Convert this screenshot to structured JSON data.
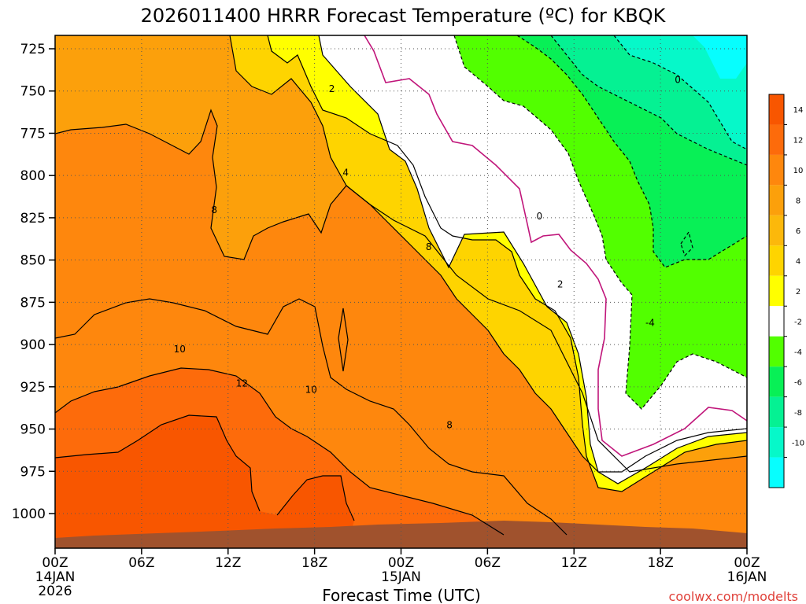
{
  "chart_data": {
    "type": "contour",
    "title": "2026011400 HRRR Forecast Temperature (ºC) for KBQK",
    "xlabel": "Forecast Time (UTC)",
    "ylabel": "",
    "x_ticks": [
      {
        "label": "00Z",
        "sub": [
          "14JAN",
          "2026"
        ],
        "hour": 0
      },
      {
        "label": "06Z",
        "sub": [],
        "hour": 6
      },
      {
        "label": "12Z",
        "sub": [],
        "hour": 12
      },
      {
        "label": "18Z",
        "sub": [],
        "hour": 18
      },
      {
        "label": "00Z",
        "sub": [
          "15JAN"
        ],
        "hour": 24
      },
      {
        "label": "06Z",
        "sub": [],
        "hour": 30
      },
      {
        "label": "12Z",
        "sub": [],
        "hour": 36
      },
      {
        "label": "18Z",
        "sub": [],
        "hour": 42
      },
      {
        "label": "00Z",
        "sub": [
          "16JAN"
        ],
        "hour": 48
      }
    ],
    "xlim": [
      0,
      48
    ],
    "y_ticks": [
      "725",
      "750",
      "775",
      "800",
      "825",
      "850",
      "875",
      "900",
      "925",
      "950",
      "975",
      "1000"
    ],
    "ylim_hpa": [
      713,
      1021
    ],
    "grid": true,
    "colorbar": {
      "labels": [
        "14",
        "12",
        "10",
        "8",
        "6",
        "4",
        "2",
        "-2",
        "-4",
        "-6",
        "-8",
        "-10"
      ],
      "colors": [
        "#f85600",
        "#fd6b0b",
        "#fe870d",
        "#fca00b",
        "#fcb80b",
        "#fed400",
        "#ffff00",
        "#ffffff",
        "#52ff00",
        "#08f056",
        "#05f193",
        "#06f8c9",
        "#07fefe"
      ]
    },
    "contour_labels": [
      {
        "text": "0",
        "hour": 0.9,
        "p": 745
      },
      {
        "text": "2",
        "hour": 0.4,
        "p": 751
      },
      {
        "text": "4",
        "hour": 0.42,
        "p": 805
      },
      {
        "text": "8",
        "hour": 0.23,
        "p": 829
      },
      {
        "text": "8",
        "hour": 0.54,
        "p": 853
      },
      {
        "text": "0",
        "hour": 0.7,
        "p": 833
      },
      {
        "text": "2",
        "hour": 0.73,
        "p": 877
      },
      {
        "text": "-4",
        "hour": 0.86,
        "p": 902
      },
      {
        "text": "10",
        "hour": 0.18,
        "p": 919
      },
      {
        "text": "12",
        "hour": 0.27,
        "p": 941
      },
      {
        "text": "10",
        "hour": 0.37,
        "p": 945
      },
      {
        "text": "8",
        "hour": 0.57,
        "p": 968
      }
    ],
    "terrain_color": "#a0522d",
    "credit": "coolwx.com/modelts"
  }
}
